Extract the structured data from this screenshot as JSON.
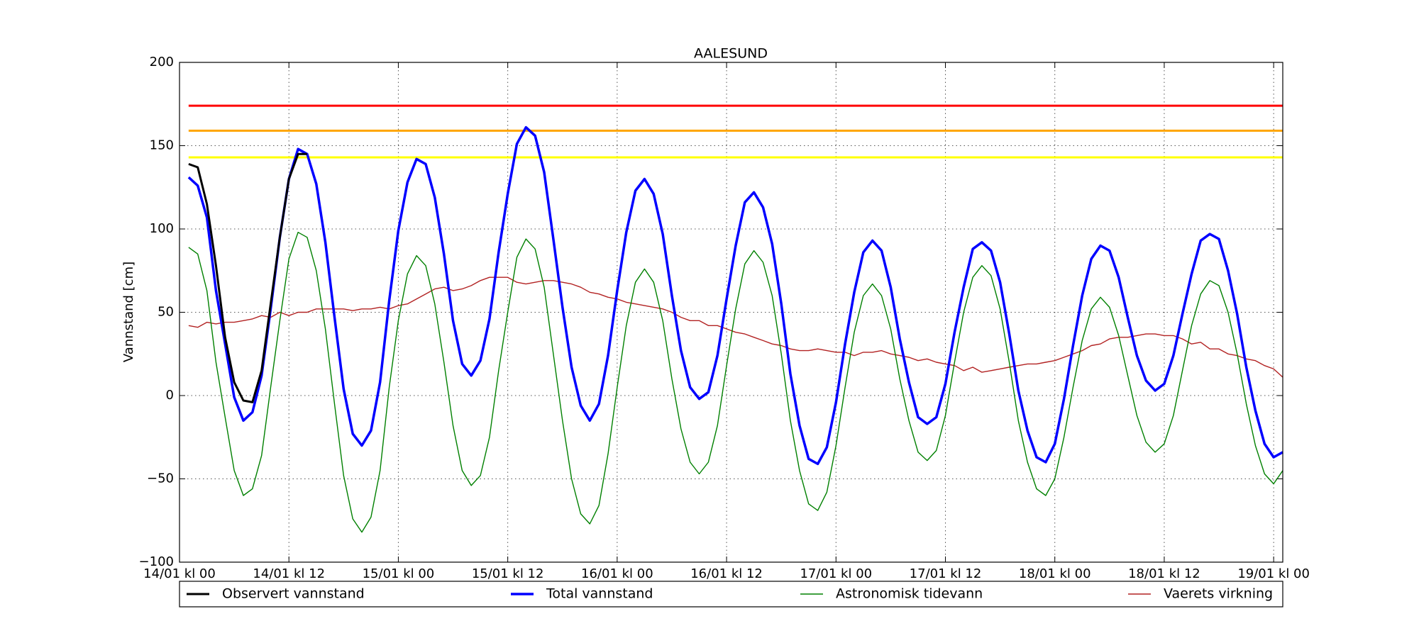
{
  "chart_data": {
    "type": "line",
    "title": "AALESUND",
    "y_label": "Vannstand [cm]",
    "grid": true,
    "legend": "below",
    "xlim": [
      0,
      121
    ],
    "xticks": [
      {
        "value": 0,
        "label": "14/01 kl 00"
      },
      {
        "value": 12,
        "label": "14/01 kl 12"
      },
      {
        "value": 24,
        "label": "15/01 kl 00"
      },
      {
        "value": 36,
        "label": "15/01 kl 12"
      },
      {
        "value": 48,
        "label": "16/01 kl 00"
      },
      {
        "value": 60,
        "label": "16/01 kl 12"
      },
      {
        "value": 72,
        "label": "17/01 kl 00"
      },
      {
        "value": 84,
        "label": "17/01 kl 12"
      },
      {
        "value": 96,
        "label": "18/01 kl 00"
      },
      {
        "value": 108,
        "label": "18/01 kl 12"
      },
      {
        "value": 120,
        "label": "19/01 kl 00"
      }
    ],
    "ylim": [
      -100,
      200
    ],
    "yticks": [
      {
        "value": -100,
        "label": "−100"
      },
      {
        "value": -50,
        "label": "−50"
      },
      0,
      50,
      100,
      150,
      200
    ],
    "hlines": [
      {
        "value": 174,
        "color": "#ff0000"
      },
      {
        "value": 159,
        "color": "#ffa500"
      },
      {
        "value": 143,
        "color": "#ffff00"
      }
    ],
    "x": [
      1,
      2,
      3,
      4,
      5,
      6,
      7,
      8,
      9,
      10,
      11,
      12,
      13,
      14,
      15,
      16,
      17,
      18,
      19,
      20,
      21,
      22,
      23,
      24,
      25,
      26,
      27,
      28,
      29,
      30,
      31,
      32,
      33,
      34,
      35,
      36,
      37,
      38,
      39,
      40,
      41,
      42,
      43,
      44,
      45,
      46,
      47,
      48,
      49,
      50,
      51,
      52,
      53,
      54,
      55,
      56,
      57,
      58,
      59,
      60,
      61,
      62,
      63,
      64,
      65,
      66,
      67,
      68,
      69,
      70,
      71,
      72,
      73,
      74,
      75,
      76,
      77,
      78,
      79,
      80,
      81,
      82,
      83,
      84,
      85,
      86,
      87,
      88,
      89,
      90,
      91,
      92,
      93,
      94,
      95,
      96,
      97,
      98,
      99,
      100,
      101,
      102,
      103,
      104,
      105,
      106,
      107,
      108,
      109,
      110,
      111,
      112,
      113,
      114,
      115,
      116,
      117,
      118,
      119,
      120,
      121
    ],
    "series": [
      {
        "name": "Observert vannstand",
        "color": "#000000",
        "width": 3,
        "x": [
          1,
          2,
          3,
          4,
          5,
          6,
          7,
          8,
          9,
          10,
          11,
          12,
          13,
          14
        ],
        "values": [
          139,
          137,
          115,
          78,
          35,
          8,
          -3,
          -4,
          15,
          55,
          95,
          130,
          145,
          145
        ]
      },
      {
        "name": "Total vannstand",
        "color": "#0000ff",
        "width": 3.5,
        "values": [
          131,
          126,
          107,
          63,
          31,
          -1,
          -15,
          -10,
          12,
          52,
          95,
          130,
          148,
          145,
          127,
          92,
          47,
          4,
          -23,
          -30,
          -21,
          8,
          57,
          99,
          128,
          142,
          139,
          119,
          85,
          45,
          19,
          12,
          21,
          46,
          86,
          121,
          151,
          161,
          156,
          134,
          94,
          53,
          17,
          -6,
          -15,
          -5,
          24,
          63,
          98,
          123,
          130,
          121,
          97,
          60,
          27,
          5,
          -2,
          2,
          24,
          58,
          90,
          116,
          122,
          113,
          91,
          55,
          13,
          -18,
          -38,
          -41,
          -31,
          -4,
          31,
          62,
          86,
          93,
          87,
          65,
          34,
          8,
          -13,
          -17,
          -13,
          7,
          38,
          65,
          88,
          92,
          87,
          68,
          37,
          3,
          -21,
          -37,
          -40,
          -29,
          -2,
          30,
          60,
          82,
          90,
          87,
          71,
          47,
          24,
          9,
          3,
          7,
          24,
          49,
          73,
          93,
          97,
          94,
          75,
          49,
          17,
          -9,
          -29,
          -37,
          -34
        ]
      },
      {
        "name": "Astronomisk tidevann",
        "color": "#008000",
        "width": 1.4,
        "values": [
          89,
          85,
          63,
          20,
          -13,
          -45,
          -60,
          -56,
          -36,
          5,
          45,
          82,
          98,
          95,
          75,
          40,
          -5,
          -48,
          -74,
          -82,
          -73,
          -45,
          5,
          45,
          73,
          84,
          78,
          55,
          20,
          -18,
          -45,
          -54,
          -48,
          -25,
          15,
          50,
          83,
          94,
          88,
          65,
          25,
          -15,
          -50,
          -71,
          -77,
          -66,
          -35,
          5,
          42,
          68,
          76,
          68,
          45,
          10,
          -20,
          -40,
          -47,
          -40,
          -18,
          18,
          52,
          79,
          87,
          80,
          60,
          25,
          -15,
          -45,
          -65,
          -69,
          -58,
          -30,
          5,
          38,
          60,
          67,
          60,
          40,
          10,
          -15,
          -34,
          -39,
          -33,
          -12,
          20,
          50,
          71,
          78,
          72,
          52,
          20,
          -15,
          -40,
          -56,
          -60,
          -50,
          -25,
          5,
          33,
          52,
          59,
          53,
          36,
          12,
          -12,
          -28,
          -34,
          -29,
          -12,
          15,
          42,
          61,
          69,
          66,
          50,
          25,
          -5,
          -30,
          -47,
          -53,
          -45
        ]
      },
      {
        "name": "Vaerets virkning",
        "color": "#b22222",
        "width": 1.4,
        "values": [
          42,
          41,
          44,
          43,
          44,
          44,
          45,
          46,
          48,
          47,
          50,
          48,
          50,
          50,
          52,
          52,
          52,
          52,
          51,
          52,
          52,
          53,
          52,
          54,
          55,
          58,
          61,
          64,
          65,
          63,
          64,
          66,
          69,
          71,
          71,
          71,
          68,
          67,
          68,
          69,
          69,
          68,
          67,
          65,
          62,
          61,
          59,
          58,
          56,
          55,
          54,
          53,
          52,
          50,
          47,
          45,
          45,
          42,
          42,
          40,
          38,
          37,
          35,
          33,
          31,
          30,
          28,
          27,
          27,
          28,
          27,
          26,
          26,
          24,
          26,
          26,
          27,
          25,
          24,
          23,
          21,
          22,
          20,
          19,
          18,
          15,
          17,
          14,
          15,
          16,
          17,
          18,
          19,
          19,
          20,
          21,
          23,
          25,
          27,
          30,
          31,
          34,
          35,
          35,
          36,
          37,
          37,
          36,
          36,
          34,
          31,
          32,
          28,
          28,
          25,
          24,
          22,
          21,
          18,
          16,
          11
        ]
      }
    ]
  }
}
